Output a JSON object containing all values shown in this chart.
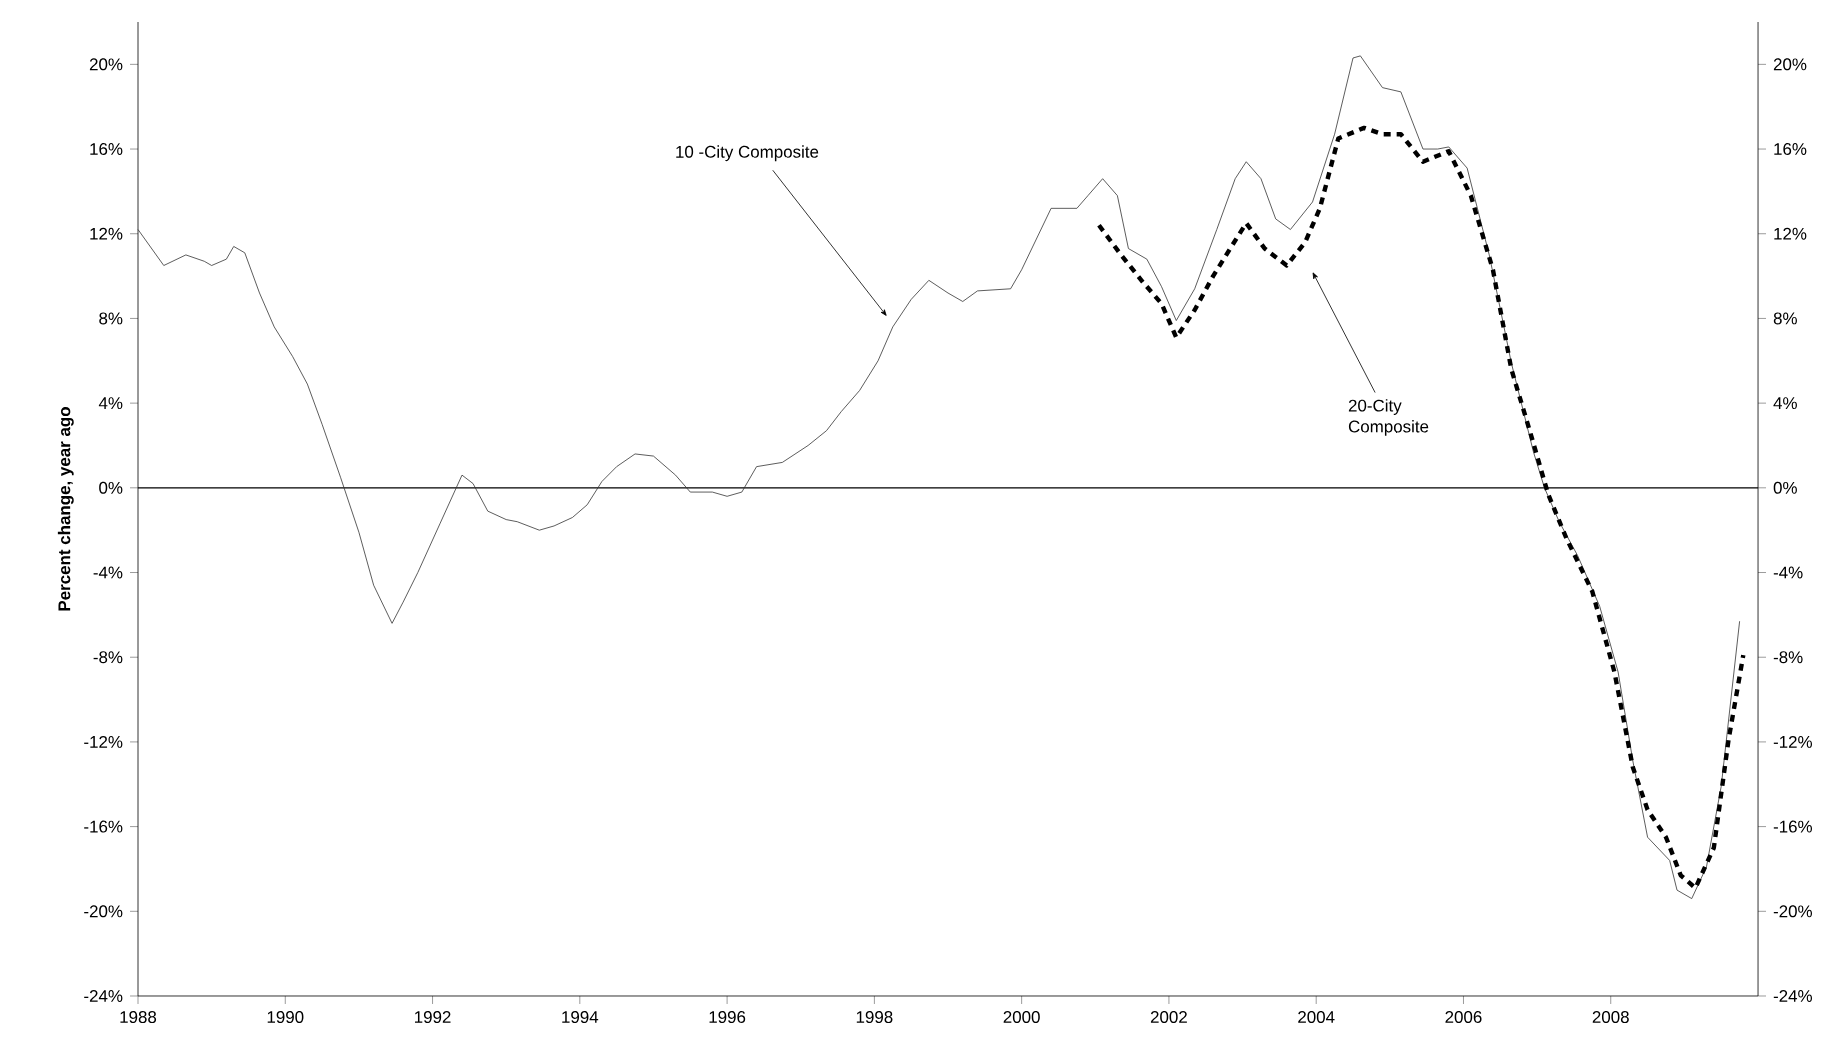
{
  "chart_data": {
    "type": "line",
    "ylabel": "Percent change, year ago",
    "xlim": [
      1988,
      2010
    ],
    "ylim": [
      -24,
      22
    ],
    "y2lim": [
      -24,
      22
    ],
    "xticks": [
      1988,
      1990,
      1992,
      1994,
      1996,
      1998,
      2000,
      2002,
      2004,
      2006,
      2008
    ],
    "yticks": [
      {
        "value": -24,
        "label": "-24%"
      },
      {
        "value": -20,
        "label": "-20%"
      },
      {
        "value": -16,
        "label": "-16%"
      },
      {
        "value": -12,
        "label": "-12%"
      },
      {
        "value": -8,
        "label": "-8%"
      },
      {
        "value": -4,
        "label": "-4%"
      },
      {
        "value": 0,
        "label": "0%"
      },
      {
        "value": 4,
        "label": "4%"
      },
      {
        "value": 8,
        "label": "8%"
      },
      {
        "value": 12,
        "label": "12%"
      },
      {
        "value": 16,
        "label": "16%"
      },
      {
        "value": 20,
        "label": "20%"
      }
    ],
    "y2ticks": [
      {
        "value": -24,
        "label": "-24%"
      },
      {
        "value": -20,
        "label": "-20%"
      },
      {
        "value": -16,
        "label": "-16%"
      },
      {
        "value": -12,
        "label": "-12%"
      },
      {
        "value": -8,
        "label": "-8%"
      },
      {
        "value": -4,
        "label": "-4%"
      },
      {
        "value": 0,
        "label": "0%"
      },
      {
        "value": 4,
        "label": "4%"
      },
      {
        "value": 8,
        "label": "8%"
      },
      {
        "value": 12,
        "label": "12%"
      },
      {
        "value": 16,
        "label": "16%"
      },
      {
        "value": 20,
        "label": "20%"
      }
    ],
    "grid": false,
    "marker": "none",
    "ref_lines": [
      {
        "axis": "y",
        "value": 0,
        "color": "#000000"
      }
    ],
    "annotations": [
      {
        "text": "10 -City Composite",
        "x": 1998.17,
        "y": 8.1
      },
      {
        "text": "20-City Composite",
        "x": 2003.95,
        "y": 10.2
      }
    ],
    "series": [
      {
        "color": "#333333",
        "line_style": "solid",
        "x": [
          1988.0,
          1988.35,
          1988.65,
          1988.9,
          1989.0,
          1989.2,
          1989.3,
          1989.45,
          1989.65,
          1989.85,
          1990.1,
          1990.3,
          1990.5,
          1990.75,
          1991.0,
          1991.2,
          1991.45,
          1991.6,
          1991.8,
          1992.1,
          1992.4,
          1992.55,
          1992.75,
          1993.0,
          1993.15,
          1993.45,
          1993.65,
          1993.9,
          1994.1,
          1994.3,
          1994.5,
          1994.75,
          1995.0,
          1995.3,
          1995.5,
          1995.8,
          1996.0,
          1996.2,
          1996.4,
          1996.75,
          1997.1,
          1997.35,
          1997.55,
          1997.8,
          1998.05,
          1998.25,
          1998.5,
          1998.74,
          1999.0,
          1999.2,
          1999.4,
          1999.85,
          2000.0,
          2000.4,
          2000.55,
          2000.75,
          2000.9,
          2001.1,
          2001.3,
          2001.45,
          2001.7,
          2001.9,
          2002.1,
          2002.35,
          2002.65,
          2002.9,
          2003.05,
          2003.25,
          2003.45,
          2003.65,
          2003.95,
          2004.25,
          2004.5,
          2004.6,
          2004.9,
          2005.15,
          2005.45,
          2005.65,
          2005.8,
          2006.05,
          2006.35,
          2006.65,
          2006.95,
          2007.1,
          2007.3,
          2007.55,
          2007.85,
          2008.1,
          2008.3,
          2008.5,
          2008.8,
          2008.9,
          2009.1,
          2009.3,
          2009.5,
          2009.75
        ],
        "values": [
          12.2,
          10.5,
          11.0,
          10.7,
          10.5,
          10.8,
          11.4,
          11.1,
          9.2,
          7.6,
          6.2,
          4.9,
          3.0,
          0.5,
          -2.1,
          -4.6,
          -6.4,
          -5.4,
          -4.0,
          -1.7,
          0.6,
          0.2,
          -1.1,
          -1.5,
          -1.6,
          -2.0,
          -1.8,
          -1.4,
          -0.8,
          0.3,
          1.0,
          1.6,
          1.5,
          0.6,
          -0.2,
          -0.2,
          -0.4,
          -0.2,
          1.0,
          1.2,
          2.0,
          2.7,
          3.6,
          4.6,
          6.0,
          7.6,
          8.9,
          9.8,
          9.2,
          8.8,
          9.3,
          9.4,
          10.3,
          13.2,
          13.2,
          13.2,
          13.8,
          14.6,
          13.8,
          11.3,
          10.8,
          9.5,
          7.9,
          9.4,
          12.2,
          14.6,
          15.4,
          14.6,
          12.7,
          12.2,
          13.5,
          16.7,
          20.3,
          20.4,
          18.9,
          18.7,
          16.0,
          16.0,
          16.1,
          15.1,
          11.0,
          5.9,
          1.7,
          0,
          -1.6,
          -3.2,
          -5.6,
          -8.7,
          -12.9,
          -16.5,
          -17.6,
          -19.0,
          -19.4,
          -17.9,
          -14.1,
          -6.3
        ]
      },
      {
        "color": "#000000",
        "line_style": "dashed",
        "x": [
          2001.05,
          2001.35,
          2001.65,
          2001.9,
          2002.1,
          2002.35,
          2002.6,
          2002.85,
          2003.05,
          2003.3,
          2003.6,
          2003.85,
          2004.05,
          2004.3,
          2004.65,
          2004.9,
          2005.15,
          2005.45,
          2005.8,
          2006.1,
          2006.4,
          2006.65,
          2006.9,
          2007.15,
          2007.4,
          2007.75,
          2008.05,
          2008.3,
          2008.5,
          2008.75,
          2008.95,
          2009.15,
          2009.4,
          2009.6,
          2009.8
        ],
        "values": [
          12.4,
          11.0,
          9.7,
          8.7,
          7.1,
          8.4,
          10.0,
          11.4,
          12.5,
          11.3,
          10.5,
          11.6,
          13.2,
          16.5,
          17.0,
          16.7,
          16.7,
          15.4,
          15.9,
          13.8,
          10.3,
          5.6,
          2.7,
          -0.3,
          -2.4,
          -4.9,
          -8.7,
          -13.2,
          -15.2,
          -16.5,
          -18.3,
          -18.9,
          -17.0,
          -11.9,
          -7.9
        ]
      }
    ]
  }
}
